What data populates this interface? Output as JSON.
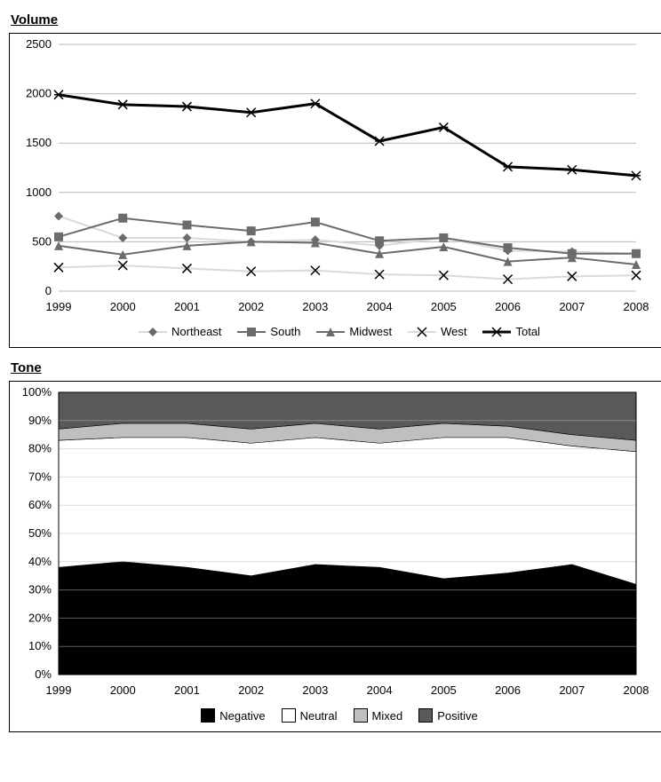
{
  "volume_chart": {
    "title": "Volume",
    "type": "line",
    "years": [
      1999,
      2000,
      2001,
      2002,
      2003,
      2004,
      2005,
      2006,
      2007,
      2008
    ],
    "ylim": [
      0,
      2500
    ],
    "ytick_step": 500,
    "line_color": "#6b6b6b",
    "line_width": 2,
    "total_line_color": "#000000",
    "total_line_width": 3,
    "light_line_color": "#d9d9d9",
    "grid_color": "#b8b8b8",
    "background_color": "#ffffff",
    "marker_fill": "#6b6b6b",
    "label_fontsize": 13,
    "series": [
      {
        "name": "Northeast",
        "marker": "diamond",
        "line": "light",
        "values": [
          760,
          540,
          540,
          500,
          520,
          460,
          540,
          410,
          400,
          380
        ]
      },
      {
        "name": "South",
        "marker": "square",
        "line": "gray",
        "values": [
          550,
          740,
          670,
          610,
          700,
          510,
          540,
          440,
          380,
          380
        ]
      },
      {
        "name": "Midwest",
        "marker": "triangle",
        "line": "gray",
        "values": [
          460,
          370,
          460,
          500,
          490,
          380,
          450,
          300,
          340,
          270
        ]
      },
      {
        "name": "West",
        "marker": "x",
        "line": "light",
        "values": [
          240,
          260,
          230,
          200,
          210,
          170,
          160,
          120,
          150,
          160
        ]
      },
      {
        "name": "Total",
        "marker": "star",
        "line": "black",
        "values": [
          1990,
          1890,
          1870,
          1810,
          1900,
          1520,
          1660,
          1260,
          1230,
          1170
        ]
      }
    ]
  },
  "tone_chart": {
    "title": "Tone",
    "type": "stacked_area",
    "years": [
      1999,
      2000,
      2001,
      2002,
      2003,
      2004,
      2005,
      2006,
      2007,
      2008
    ],
    "ylim": [
      0,
      100
    ],
    "ytick_step": 10,
    "y_suffix": "%",
    "grid_color": "#b8b8b8",
    "background_color": "#ffffff",
    "label_fontsize": 13,
    "series": [
      {
        "name": "Negative",
        "color": "#000000",
        "values": [
          38,
          40,
          38,
          35,
          39,
          38,
          34,
          36,
          39,
          32
        ]
      },
      {
        "name": "Neutral",
        "color": "#ffffff",
        "values": [
          45,
          44,
          46,
          47,
          45,
          44,
          50,
          48,
          42,
          47
        ]
      },
      {
        "name": "Mixed",
        "color": "#bfbfbf",
        "values": [
          4,
          5,
          5,
          5,
          5,
          5,
          5,
          4,
          4,
          4
        ]
      },
      {
        "name": "Positive",
        "color": "#595959",
        "values": [
          13,
          11,
          11,
          13,
          11,
          13,
          11,
          12,
          15,
          17
        ]
      }
    ]
  }
}
